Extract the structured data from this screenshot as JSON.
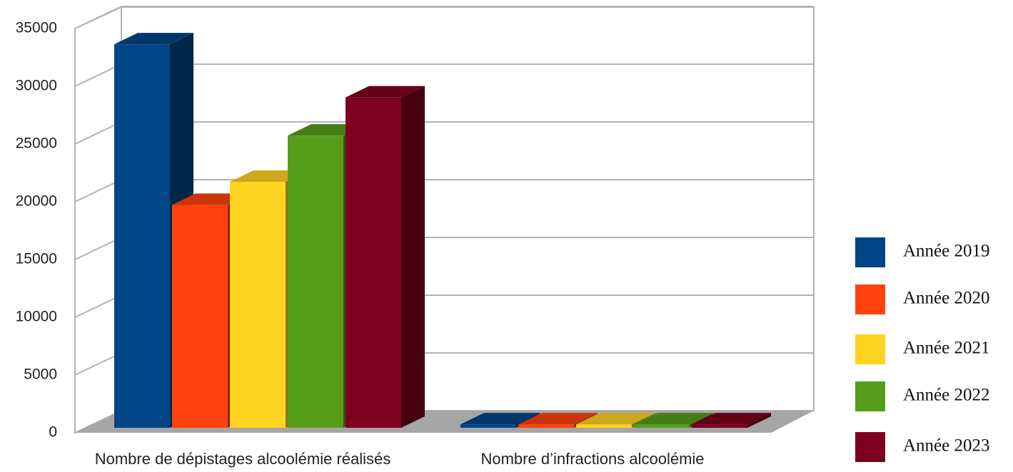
{
  "chart_data": {
    "type": "bar3d",
    "categories": [
      "Nombre de dépistages alcoolémie réalisés",
      "Nombre d’infractions alcoolémie"
    ],
    "series": [
      {
        "name": "Année 2019",
        "color": "#004586",
        "values": [
          33200,
          300
        ]
      },
      {
        "name": "Année 2020",
        "color": "#ff420e",
        "values": [
          19300,
          300
        ]
      },
      {
        "name": "Année 2021",
        "color": "#ffd320",
        "values": [
          21300,
          300
        ]
      },
      {
        "name": "Année 2022",
        "color": "#579d1c",
        "values": [
          25300,
          300
        ]
      },
      {
        "name": "Année 2023",
        "color": "#7e0021",
        "values": [
          28600,
          300
        ]
      }
    ],
    "ylim": [
      0,
      35000
    ],
    "yticks": [
      0,
      5000,
      10000,
      15000,
      20000,
      25000,
      30000,
      35000
    ],
    "grid": true,
    "legend": "right"
  }
}
